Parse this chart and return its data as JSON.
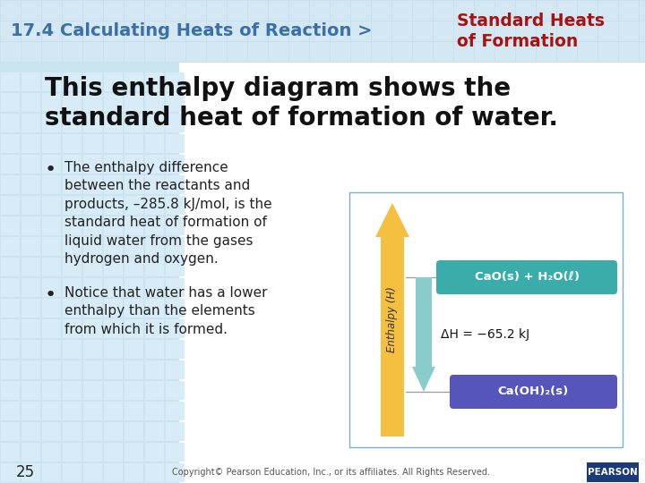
{
  "header_text": "17.4 Calculating Heats of Reaction >",
  "header_subtext": "Standard Heats\nof Formation",
  "header_bg_color": "#c8dff0",
  "header_text_color": "#3a6fa8",
  "header_sub_color": "#aa1111",
  "title_text": "This enthalpy diagram shows the\nstandard heat of formation of water.",
  "bullet1": "The enthalpy difference\nbetween the reactants and\nproducts, –285.8 kJ/mol, is the\nstandard heat of formation of\nliquid water from the gases\nhydrogen and oxygen.",
  "bullet2": "Notice that water has a lower\nenthalpy than the elements\nfrom which it is formed.",
  "footer_num": "25",
  "footer_copy": "Copyright© Pearson Education, Inc., or its affiliates. All Rights Reserved.",
  "bg_color_top": "#daeef8",
  "bg_color_bottom": "#c8e4f5",
  "diagram_upper_label": "CaO(s) + H₂O(ℓ)",
  "diagram_lower_label": "Ca(OH)₂(s)",
  "diagram_delta_h": "ΔH = −65.2 kJ",
  "diagram_upper_color": "#3aacaa",
  "diagram_lower_color": "#5555bb",
  "diagram_arrow_up_color": "#f5c040",
  "diagram_arrow_down_color": "#88cccc",
  "box_border_color": "#7ab0c8",
  "content_bg": "#ffffff",
  "grid_color": "#b8d8ea"
}
